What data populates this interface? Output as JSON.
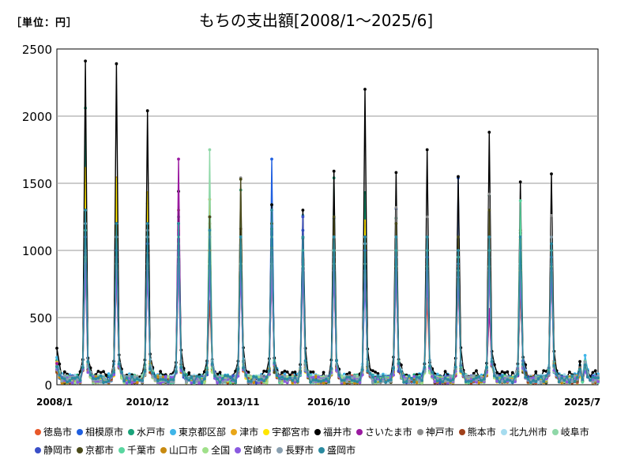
{
  "unit_label": "［単位：円］",
  "chart_data": {
    "type": "line",
    "title": "もちの支出額[2008/1～2025/6]",
    "xlabel": "",
    "ylabel": "",
    "ylim": [
      0,
      2500
    ],
    "yticks": [
      0,
      500,
      1000,
      1500,
      2000,
      2500
    ],
    "xticks": [
      "2008/1",
      "2010/12",
      "2013/11",
      "2016/10",
      "2019/9",
      "2022/8",
      "2025/7"
    ],
    "grid": true,
    "legend_position": "bottom",
    "x_start": "2008/1",
    "n_months": 210,
    "series": [
      {
        "name": "徳島市",
        "color": "#e8582a",
        "base": 45,
        "peaks": [
          1050,
          830,
          1060,
          1000,
          1200,
          960,
          880,
          930,
          900,
          1200,
          870,
          640,
          760,
          560,
          720,
          920
        ]
      },
      {
        "name": "相模原市",
        "color": "#1f5fe0",
        "base": 40,
        "peaks": [
          1420,
          1380,
          1100,
          1300,
          1250,
          1040,
          1680,
          1150,
          1240,
          780,
          1310,
          830,
          1540,
          940,
          750,
          1030
        ]
      },
      {
        "name": "水戸市",
        "color": "#1aa37a",
        "base": 50,
        "peaks": [
          2060,
          1250,
          1350,
          1250,
          1160,
          1450,
          1160,
          1090,
          1540,
          1430,
          1240,
          1040,
          850,
          1410,
          1130,
          1080
        ]
      },
      {
        "name": "東京都区部",
        "color": "#3fb5e8",
        "base": 55,
        "peaks": [
          1400,
          1100,
          1200,
          1100,
          1100,
          1000,
          1340,
          1260,
          1000,
          1000,
          1000,
          880,
          1080,
          950,
          760,
          980
        ]
      },
      {
        "name": "津市",
        "color": "#e8a61a",
        "base": 45,
        "peaks": [
          1500,
          1540,
          1260,
          1300,
          1380,
          950,
          1020,
          1000,
          920,
          1200,
          960,
          1040,
          900,
          1100,
          1080,
          880
        ]
      },
      {
        "name": "宇都宮市",
        "color": "#ffe600",
        "base": 40,
        "peaks": [
          1610,
          1530,
          1430,
          1150,
          1100,
          980,
          1000,
          940,
          950,
          1220,
          900,
          1070,
          880,
          1110,
          1100,
          900
        ]
      },
      {
        "name": "福井市",
        "color": "#000000",
        "base": 70,
        "peaks": [
          2410,
          2390,
          2040,
          1440,
          1250,
          1160,
          1340,
          1300,
          1590,
          2200,
          1580,
          1750,
          1550,
          1880,
          1510,
          1570
        ]
      },
      {
        "name": "さいたま市",
        "color": "#9a1aa0",
        "base": 40,
        "peaks": [
          980,
          950,
          900,
          1680,
          1000,
          900,
          950,
          880,
          1000,
          900,
          880,
          900,
          880,
          560,
          880,
          900
        ]
      },
      {
        "name": "神戸市",
        "color": "#8c8c8c",
        "base": 45,
        "peaks": [
          1100,
          1000,
          1150,
          1050,
          1000,
          1540,
          1200,
          1000,
          1100,
          1100,
          1320,
          1250,
          1100,
          1420,
          1000,
          1260
        ]
      },
      {
        "name": "熊本市",
        "color": "#a0401a",
        "base": 40,
        "peaks": [
          1000,
          1000,
          980,
          1000,
          620,
          900,
          900,
          900,
          880,
          900,
          870,
          900,
          880,
          900,
          700,
          880
        ]
      },
      {
        "name": "北九州市",
        "color": "#a6dcef",
        "base": 50,
        "peaks": [
          1300,
          1200,
          1100,
          1100,
          1000,
          1000,
          1100,
          1000,
          1000,
          1050,
          950,
          950,
          900,
          950,
          900,
          950
        ]
      },
      {
        "name": "岐阜市",
        "color": "#8fd8a8",
        "base": 45,
        "peaks": [
          1200,
          1100,
          1100,
          1100,
          1750,
          1000,
          1100,
          1000,
          1000,
          1100,
          950,
          950,
          900,
          950,
          900,
          950
        ]
      },
      {
        "name": "静岡市",
        "color": "#3a4fc8",
        "base": 45,
        "peaks": [
          1100,
          1000,
          1050,
          1000,
          1000,
          950,
          1000,
          1250,
          950,
          1000,
          950,
          950,
          900,
          950,
          900,
          950
        ]
      },
      {
        "name": "京都市",
        "color": "#4a4a1a",
        "base": 40,
        "peaks": [
          1300,
          1200,
          1100,
          1200,
          1250,
          1530,
          1200,
          1100,
          1250,
          1100,
          1200,
          1100,
          1100,
          1300,
          1150,
          1100
        ]
      },
      {
        "name": "千葉市",
        "color": "#5ad6a0",
        "base": 45,
        "peaks": [
          1150,
          1100,
          1100,
          1200,
          1100,
          1100,
          1100,
          1000,
          1000,
          1100,
          1000,
          1000,
          950,
          1000,
          1370,
          1000
        ]
      },
      {
        "name": "山口市",
        "color": "#c88a10",
        "base": 40,
        "peaks": [
          900,
          850,
          850,
          900,
          1000,
          850,
          850,
          850,
          850,
          900,
          850,
          850,
          800,
          850,
          850,
          850
        ]
      },
      {
        "name": "全国",
        "color": "#a0e08a",
        "base": 40,
        "peaks": [
          950,
          900,
          900,
          950,
          900,
          900,
          900,
          880,
          900,
          900,
          880,
          880,
          850,
          880,
          850,
          880
        ]
      },
      {
        "name": "宮崎市",
        "color": "#8a5ae0",
        "base": 40,
        "peaks": [
          900,
          850,
          850,
          900,
          850,
          850,
          850,
          850,
          850,
          850,
          850,
          850,
          800,
          850,
          800,
          850
        ]
      },
      {
        "name": "長野市",
        "color": "#8aa0b0",
        "base": 45,
        "peaks": [
          1200,
          1100,
          1100,
          1200,
          1100,
          1100,
          1100,
          1100,
          1100,
          1100,
          1100,
          1100,
          1000,
          1100,
          1000,
          1100
        ]
      },
      {
        "name": "盛岡市",
        "color": "#2a8aa0",
        "base": 45,
        "peaks": [
          1300,
          1200,
          1200,
          1200,
          1150,
          1100,
          1300,
          1100,
          1100,
          1100,
          1100,
          1100,
          1000,
          1100,
          1100,
          1050
        ]
      }
    ]
  }
}
